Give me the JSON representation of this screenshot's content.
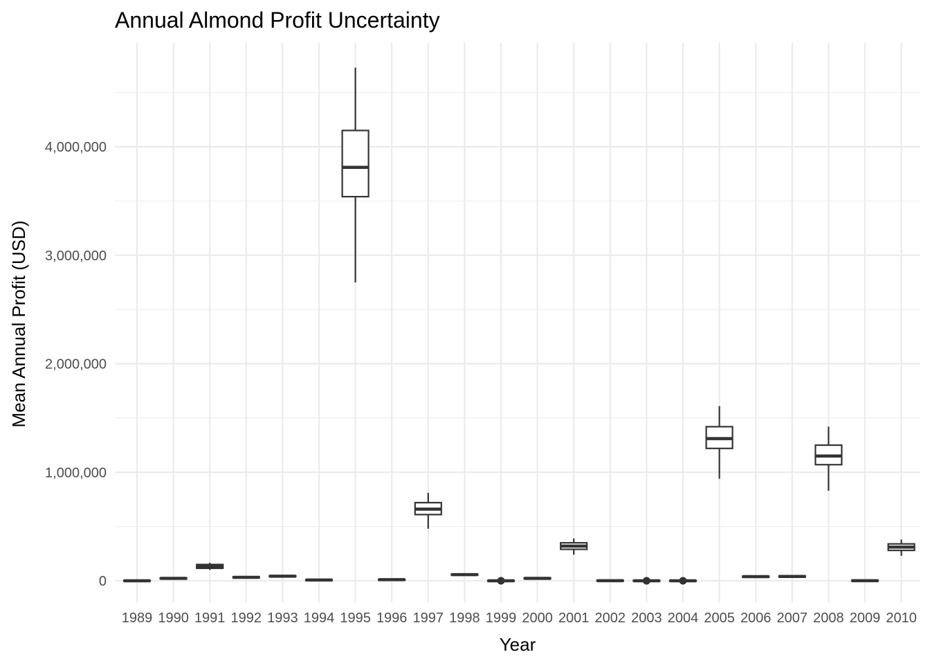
{
  "chart_data": {
    "type": "boxplot",
    "title": "Annual Almond Profit Uncertainty",
    "xlabel": "Year",
    "ylabel": "Mean Annual Profit (USD)",
    "ylim": [
      -250000,
      4850000
    ],
    "yticks": [
      0,
      1000000,
      2000000,
      3000000,
      4000000
    ],
    "ytick_labels": [
      "0",
      "1,000,000",
      "2,000,000",
      "3,000,000",
      "4,000,000"
    ],
    "grid": true,
    "categories": [
      "1989",
      "1990",
      "1991",
      "1992",
      "1993",
      "1994",
      "1995",
      "1996",
      "1997",
      "1998",
      "1999",
      "2000",
      "2001",
      "2002",
      "2003",
      "2004",
      "2005",
      "2006",
      "2007",
      "2008",
      "2009",
      "2010"
    ],
    "boxes": [
      {
        "year": "1989",
        "min": -5000,
        "q1": -3000,
        "median": 0,
        "q3": 3000,
        "max": 5000,
        "outliers": []
      },
      {
        "year": "1990",
        "min": 15000,
        "q1": 18000,
        "median": 22000,
        "q3": 26000,
        "max": 30000,
        "outliers": []
      },
      {
        "year": "1991",
        "min": 100000,
        "q1": 115000,
        "median": 135000,
        "q3": 150000,
        "max": 165000,
        "outliers": []
      },
      {
        "year": "1992",
        "min": 25000,
        "q1": 28000,
        "median": 32000,
        "q3": 36000,
        "max": 40000,
        "outliers": []
      },
      {
        "year": "1993",
        "min": 35000,
        "q1": 38000,
        "median": 42000,
        "q3": 46000,
        "max": 50000,
        "outliers": []
      },
      {
        "year": "1994",
        "min": 0,
        "q1": 3000,
        "median": 7000,
        "q3": 10000,
        "max": 13000,
        "outliers": []
      },
      {
        "year": "1995",
        "min": 2750000,
        "q1": 3540000,
        "median": 3810000,
        "q3": 4150000,
        "max": 4730000,
        "outliers": []
      },
      {
        "year": "1996",
        "min": 3000,
        "q1": 6000,
        "median": 10000,
        "q3": 13000,
        "max": 16000,
        "outliers": []
      },
      {
        "year": "1997",
        "min": 480000,
        "q1": 610000,
        "median": 660000,
        "q3": 720000,
        "max": 810000,
        "outliers": []
      },
      {
        "year": "1998",
        "min": 50000,
        "q1": 53000,
        "median": 57000,
        "q3": 61000,
        "max": 65000,
        "outliers": []
      },
      {
        "year": "1999",
        "min": -6000,
        "q1": -3000,
        "median": 0,
        "q3": 3000,
        "max": 6000,
        "outliers": [
          0
        ]
      },
      {
        "year": "2000",
        "min": 15000,
        "q1": 18000,
        "median": 22000,
        "q3": 26000,
        "max": 30000,
        "outliers": []
      },
      {
        "year": "2001",
        "min": 240000,
        "q1": 290000,
        "median": 320000,
        "q3": 350000,
        "max": 390000,
        "outliers": []
      },
      {
        "year": "2002",
        "min": -4000,
        "q1": -2000,
        "median": 1000,
        "q3": 4000,
        "max": 6000,
        "outliers": []
      },
      {
        "year": "2003",
        "min": -6000,
        "q1": -3000,
        "median": 0,
        "q3": 3000,
        "max": 6000,
        "outliers": [
          0
        ]
      },
      {
        "year": "2004",
        "min": -6000,
        "q1": -3000,
        "median": 0,
        "q3": 3000,
        "max": 6000,
        "outliers": [
          0
        ]
      },
      {
        "year": "2005",
        "min": 940000,
        "q1": 1220000,
        "median": 1310000,
        "q3": 1420000,
        "max": 1610000,
        "outliers": []
      },
      {
        "year": "2006",
        "min": 30000,
        "q1": 33000,
        "median": 38000,
        "q3": 42000,
        "max": 46000,
        "outliers": []
      },
      {
        "year": "2007",
        "min": 32000,
        "q1": 35000,
        "median": 40000,
        "q3": 44000,
        "max": 48000,
        "outliers": []
      },
      {
        "year": "2008",
        "min": 830000,
        "q1": 1070000,
        "median": 1150000,
        "q3": 1250000,
        "max": 1420000,
        "outliers": []
      },
      {
        "year": "2009",
        "min": -4000,
        "q1": -2000,
        "median": 1000,
        "q3": 4000,
        "max": 6000,
        "outliers": []
      },
      {
        "year": "2010",
        "min": 230000,
        "q1": 280000,
        "median": 310000,
        "q3": 340000,
        "max": 380000,
        "outliers": []
      }
    ]
  }
}
